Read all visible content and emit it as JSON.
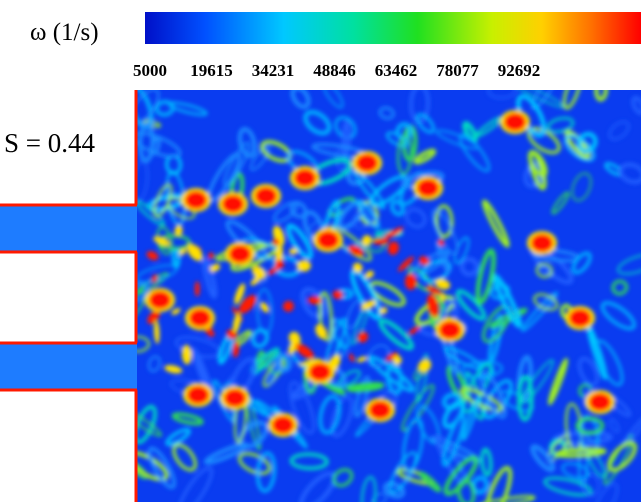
{
  "colorbar": {
    "label": "ω (1/s)",
    "ticks": [
      "5000",
      "19615",
      "34231",
      "48846",
      "63462",
      "78077",
      "92692"
    ]
  },
  "annotation": "S = 0.44"
}
